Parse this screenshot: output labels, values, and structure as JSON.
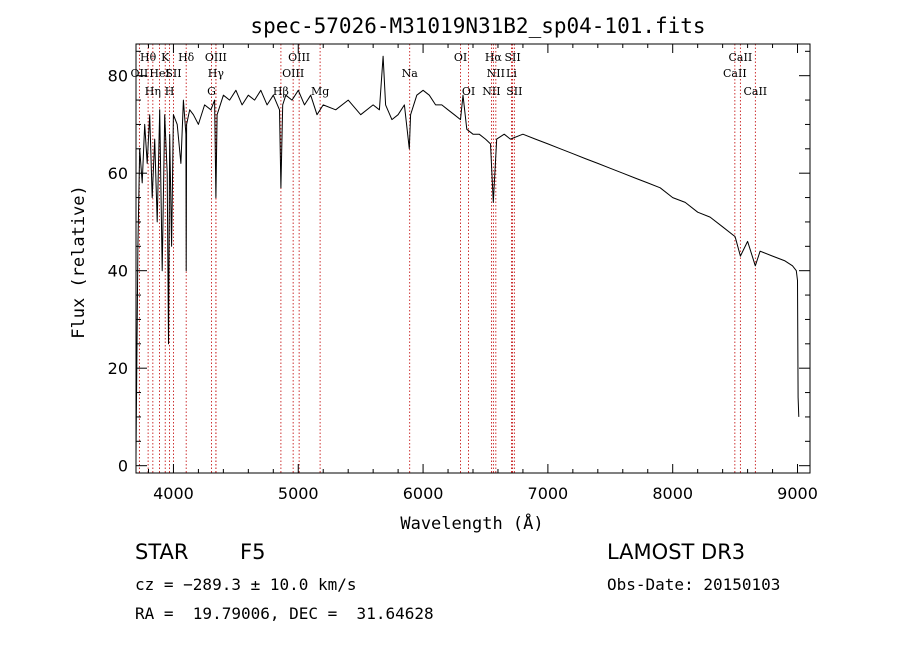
{
  "chart_data": {
    "type": "line",
    "title": "spec-57026-M31019N31B2_sp04-101.fits",
    "xlabel": "Wavelength (Å)",
    "ylabel": "Flux (relative)",
    "xlim": [
      3700,
      9100
    ],
    "ylim": [
      -1.5,
      86.5
    ],
    "x_ticks": [
      4000,
      5000,
      6000,
      7000,
      8000,
      9000
    ],
    "y_ticks": [
      0,
      20,
      40,
      60,
      80
    ],
    "series": [
      {
        "name": "flux",
        "x": [
          3700,
          3705,
          3715,
          3730,
          3750,
          3770,
          3790,
          3810,
          3830,
          3850,
          3870,
          3890,
          3910,
          3930,
          3950,
          3960,
          3970,
          3985,
          4000,
          4030,
          4060,
          4080,
          4100,
          4102,
          4105,
          4130,
          4160,
          4200,
          4250,
          4300,
          4330,
          4340,
          4350,
          4400,
          4450,
          4500,
          4550,
          4600,
          4650,
          4700,
          4750,
          4800,
          4850,
          4861,
          4875,
          4900,
          4950,
          5000,
          5050,
          5100,
          5150,
          5200,
          5300,
          5400,
          5500,
          5600,
          5650,
          5680,
          5700,
          5750,
          5800,
          5850,
          5890,
          5900,
          5950,
          6000,
          6050,
          6100,
          6150,
          6200,
          6250,
          6300,
          6320,
          6350,
          6400,
          6450,
          6500,
          6540,
          6563,
          6590,
          6650,
          6700,
          6800,
          6900,
          7000,
          7100,
          7200,
          7300,
          7400,
          7500,
          7600,
          7700,
          7800,
          7900,
          8000,
          8100,
          8200,
          8300,
          8400,
          8500,
          8542,
          8600,
          8662,
          8700,
          8800,
          8900,
          8960,
          8990,
          9000,
          9005,
          9010
        ],
        "y": [
          2,
          16,
          45,
          65,
          58,
          70,
          62,
          72,
          55,
          67,
          50,
          73,
          40,
          72,
          60,
          25,
          68,
          45,
          72,
          70,
          62,
          75,
          68,
          40,
          70,
          73,
          72,
          70,
          74,
          73,
          75,
          55,
          72,
          76,
          75,
          77,
          74,
          76,
          75,
          77,
          74,
          76,
          73,
          57,
          74,
          76,
          75,
          77,
          74,
          76,
          72,
          74,
          73,
          75,
          72,
          74,
          73,
          84,
          74,
          71,
          72,
          74,
          65,
          72,
          76,
          77,
          76,
          74,
          74,
          73,
          72,
          71,
          76,
          69,
          68,
          68,
          67,
          66,
          54,
          67,
          68,
          67,
          68,
          67,
          66,
          65,
          64,
          63,
          62,
          61,
          60,
          59,
          58,
          57,
          55,
          54,
          52,
          51,
          49,
          47,
          43,
          46,
          41,
          44,
          43,
          42,
          41,
          40,
          38,
          14,
          10
        ]
      }
    ],
    "lines": [
      {
        "label": "OII",
        "wl": 3727,
        "row": 2
      },
      {
        "label": "Hθ",
        "wl": 3797,
        "row": 1
      },
      {
        "label": "Hη",
        "wl": 3835,
        "row": 3
      },
      {
        "label": "HeI",
        "wl": 3889,
        "row": 2
      },
      {
        "label": "K",
        "wl": 3934,
        "row": 1
      },
      {
        "label": "SII",
        "wl": 4000,
        "row": 2
      },
      {
        "label": "H",
        "wl": 3969,
        "row": 3
      },
      {
        "label": "Hδ",
        "wl": 4102,
        "row": 1
      },
      {
        "label": "OIII",
        "wl": 4340,
        "row": 1
      },
      {
        "label": "Hγ",
        "wl": 4340,
        "row": 2
      },
      {
        "label": "G",
        "wl": 4305,
        "row": 3
      },
      {
        "label": "Hβ",
        "wl": 4861,
        "row": 3
      },
      {
        "label": "OIII",
        "wl": 5007,
        "row": 1
      },
      {
        "label": "OIII",
        "wl": 4959,
        "row": 2
      },
      {
        "label": "Mg",
        "wl": 5175,
        "row": 3
      },
      {
        "label": "Na",
        "wl": 5893,
        "row": 2
      },
      {
        "label": "OI",
        "wl": 6300,
        "row": 1
      },
      {
        "label": "OI",
        "wl": 6364,
        "row": 3
      },
      {
        "label": "Hα",
        "wl": 6563,
        "row": 1
      },
      {
        "label": "SII",
        "wl": 6717,
        "row": 1
      },
      {
        "label": "NII",
        "wl": 6583,
        "row": 2
      },
      {
        "label": "Li",
        "wl": 6708,
        "row": 2
      },
      {
        "label": "NII",
        "wl": 6548,
        "row": 3
      },
      {
        "label": "SII",
        "wl": 6731,
        "row": 3
      },
      {
        "label": "CaII",
        "wl": 8542,
        "row": 1
      },
      {
        "label": "CaII",
        "wl": 8498,
        "row": 2
      },
      {
        "label": "CaII",
        "wl": 8662,
        "row": 3
      }
    ]
  },
  "info": {
    "object_class": "STAR",
    "subclass": "F5",
    "survey": "LAMOST DR3",
    "cz": "cz = −289.3 ± 10.0 km/s",
    "obs_date": "Obs-Date: 20150103",
    "coords": "RA =  19.79006, DEC =  31.64628"
  },
  "colors": {
    "line_marker": "#c00000",
    "spectrum": "#000000",
    "axes": "#000000"
  }
}
